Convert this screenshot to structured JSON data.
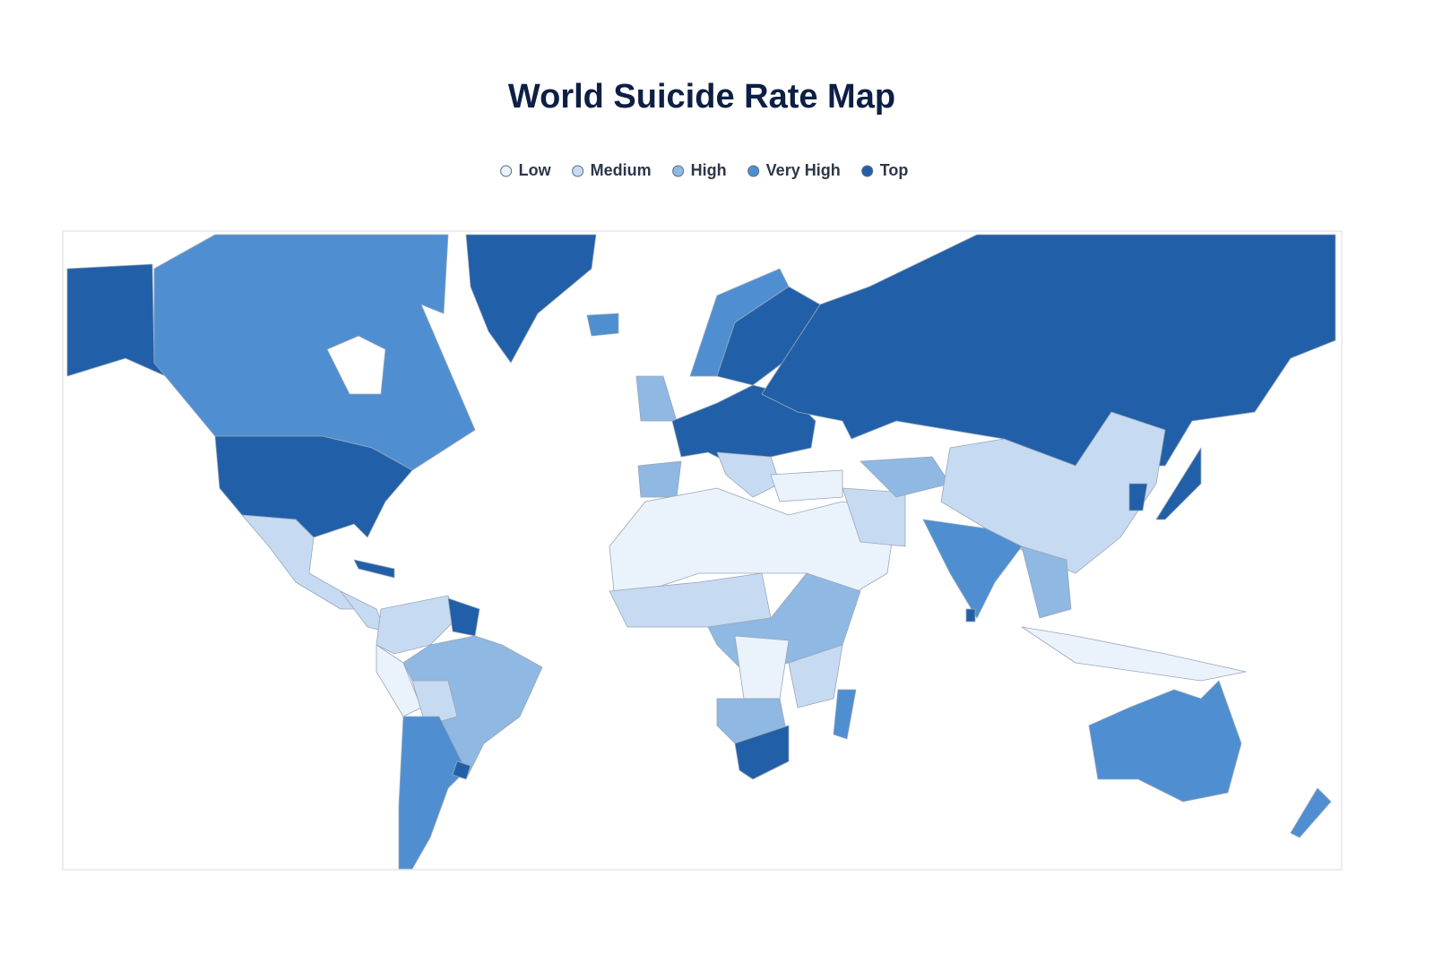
{
  "title": "World Suicide Rate Map",
  "legend": [
    {
      "name": "Low",
      "color": "#eaf2fb"
    },
    {
      "name": "Medium",
      "color": "#c6dbf2"
    },
    {
      "name": "High",
      "color": "#8fb8e3"
    },
    {
      "name": "Very High",
      "color": "#4f8fd1"
    },
    {
      "name": "Top",
      "color": "#2160a8"
    }
  ]
}
